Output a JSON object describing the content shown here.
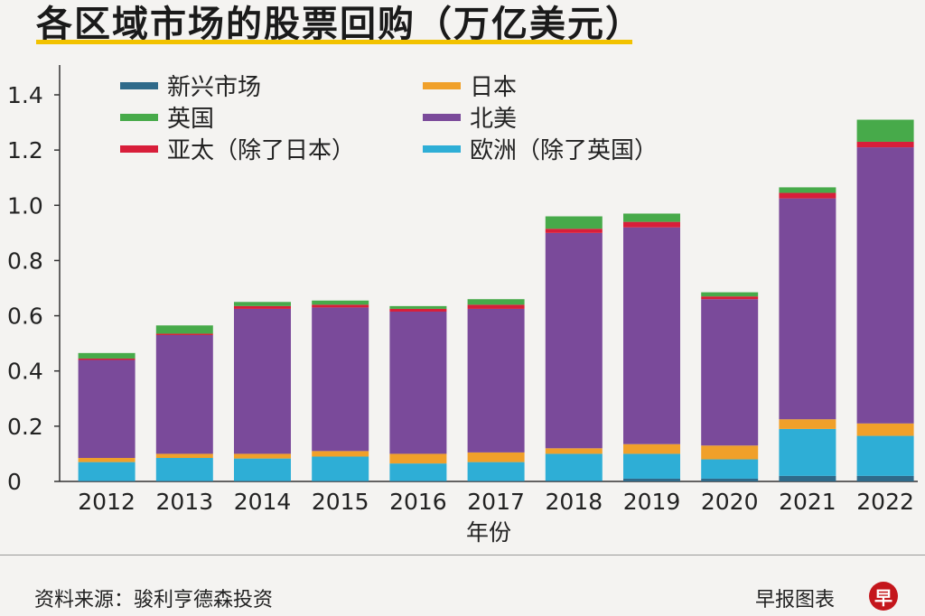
{
  "header": {
    "title": "各区域市场的股票回购（万亿美元）"
  },
  "footer": {
    "source": "资料来源：骏利亨德森投资",
    "credit": "早报图表",
    "logo_text": "早"
  },
  "colors": {
    "emerging": "#2f6a8a",
    "japan": "#f0a02a",
    "uk": "#47aa4a",
    "north_america": "#7a4a9a",
    "asia_pacific": "#d81e3a",
    "europe": "#2eaed6"
  },
  "chart_data": {
    "type": "bar",
    "stacked": true,
    "title": "各区域市场的股票回购（万亿美元）",
    "xlabel": "年份",
    "ylabel": "",
    "ylim": [
      0,
      1.5
    ],
    "yticks": [
      0,
      0.2,
      0.4,
      0.6,
      0.8,
      1.0,
      1.2,
      1.4
    ],
    "ytick_labels": [
      "0",
      "0.2",
      "0.4",
      "0.6",
      "0.8",
      "1.0",
      "1.2",
      "1.4"
    ],
    "categories": [
      "2012",
      "2013",
      "2014",
      "2015",
      "2016",
      "2017",
      "2018",
      "2019",
      "2020",
      "2021",
      "2022"
    ],
    "series": [
      {
        "key": "emerging",
        "name": "新兴市场",
        "values": [
          0.002,
          0.002,
          0.002,
          0.002,
          0.002,
          0.002,
          0.003,
          0.01,
          0.01,
          0.02,
          0.02
        ]
      },
      {
        "key": "europe",
        "name": "欧洲（除了英国）",
        "values": [
          0.068,
          0.083,
          0.081,
          0.088,
          0.063,
          0.068,
          0.097,
          0.09,
          0.07,
          0.17,
          0.145
        ]
      },
      {
        "key": "japan",
        "name": "日本",
        "values": [
          0.015,
          0.015,
          0.017,
          0.02,
          0.035,
          0.035,
          0.02,
          0.035,
          0.05,
          0.035,
          0.045
        ]
      },
      {
        "key": "north_america",
        "name": "北美",
        "values": [
          0.355,
          0.43,
          0.525,
          0.52,
          0.515,
          0.52,
          0.78,
          0.785,
          0.53,
          0.8,
          1.0
        ]
      },
      {
        "key": "asia_pacific",
        "name": "亚太（除了日本）",
        "values": [
          0.005,
          0.005,
          0.01,
          0.01,
          0.01,
          0.015,
          0.015,
          0.02,
          0.01,
          0.02,
          0.02
        ]
      },
      {
        "key": "uk",
        "name": "英国",
        "values": [
          0.02,
          0.03,
          0.015,
          0.015,
          0.01,
          0.02,
          0.045,
          0.03,
          0.015,
          0.02,
          0.08
        ]
      }
    ],
    "legend": {
      "placement": "top-left",
      "items": [
        {
          "key": "emerging",
          "label": "新兴市场"
        },
        {
          "key": "japan",
          "label": "日本"
        },
        {
          "key": "uk",
          "label": "英国"
        },
        {
          "key": "north_america",
          "label": "北美"
        },
        {
          "key": "asia_pacific",
          "label": "亚太（除了日本）"
        },
        {
          "key": "europe",
          "label": "欧洲（除了英国）"
        }
      ]
    }
  }
}
